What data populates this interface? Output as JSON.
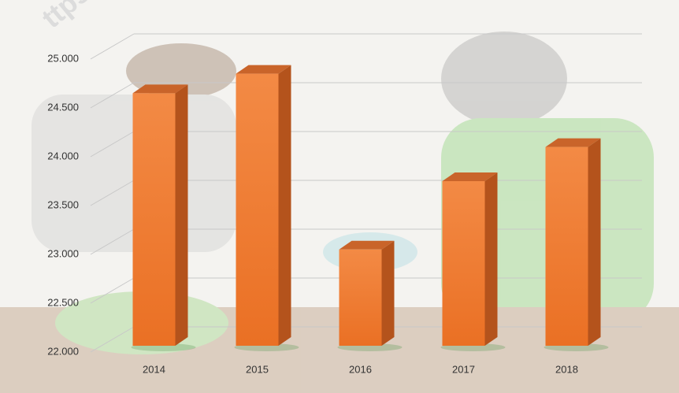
{
  "watermark": "ttps:/",
  "chart_data": {
    "type": "bar3d",
    "categories": [
      "2014",
      "2015",
      "2016",
      "2017",
      "2018"
    ],
    "values": [
      24650,
      24850,
      23050,
      23750,
      24100
    ],
    "color": "#f07f2e",
    "ylim": [
      22000,
      25000
    ],
    "yticks": [
      {
        "value": 22000,
        "label": "22.000"
      },
      {
        "value": 22500,
        "label": "22.500"
      },
      {
        "value": 23000,
        "label": "23.000"
      },
      {
        "value": 23500,
        "label": "23.500"
      },
      {
        "value": 24000,
        "label": "24.000"
      },
      {
        "value": 24500,
        "label": "24.500"
      },
      {
        "value": 25000,
        "label": "25.000"
      }
    ],
    "grid": true
  }
}
